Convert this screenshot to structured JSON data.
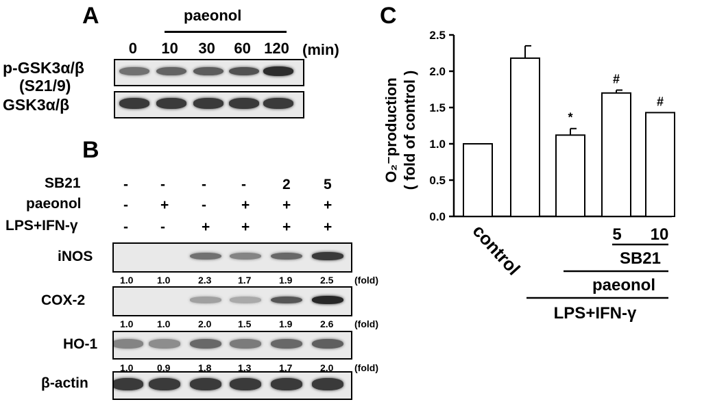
{
  "panelA": {
    "letter": "A",
    "treatment": "paeonol",
    "timepoints": [
      "0",
      "10",
      "30",
      "60",
      "120"
    ],
    "unit": "(min)",
    "rows": [
      {
        "label_line1": "p-GSK3α/β",
        "label_line2": "(S21/9)",
        "intensities": [
          0.55,
          0.62,
          0.66,
          0.72,
          0.92
        ]
      },
      {
        "label_line1": "GSK3α/β",
        "label_line2": "",
        "intensities": [
          0.85,
          0.85,
          0.85,
          0.85,
          0.85
        ]
      }
    ]
  },
  "panelB": {
    "letter": "B",
    "conditions": [
      {
        "label": "SB21",
        "values": [
          "-",
          "-",
          "-",
          "-",
          "2",
          "5"
        ]
      },
      {
        "label": "paeonol",
        "values": [
          "-",
          "+",
          "-",
          "+",
          "+",
          "+"
        ]
      },
      {
        "label": "LPS+IFN-γ",
        "values": [
          "-",
          "-",
          "+",
          "+",
          "+",
          "+"
        ]
      }
    ],
    "fold_unit": "(fold)",
    "blots": [
      {
        "label": "iNOS",
        "folds": [
          "1.0",
          "1.0",
          "2.3",
          "1.7",
          "1.9",
          "2.5"
        ],
        "intensities": [
          0.0,
          0.0,
          0.55,
          0.45,
          0.6,
          0.85
        ]
      },
      {
        "label": "COX-2",
        "folds": [
          "1.0",
          "1.0",
          "2.0",
          "1.5",
          "1.9",
          "2.6"
        ],
        "intensities": [
          0.0,
          0.0,
          0.3,
          0.25,
          0.7,
          0.95
        ]
      },
      {
        "label": "HO-1",
        "folds": [
          "1.0",
          "0.9",
          "1.8",
          "1.3",
          "1.7",
          "2.0"
        ],
        "intensities": [
          0.45,
          0.4,
          0.6,
          0.5,
          0.6,
          0.65
        ]
      },
      {
        "label": "β-actin",
        "folds": [],
        "intensities": [
          0.85,
          0.85,
          0.85,
          0.85,
          0.85,
          0.85
        ]
      }
    ]
  },
  "panelC": {
    "letter": "C",
    "chart_data": {
      "type": "bar",
      "ylabel_line1": "O₂⁻production",
      "ylabel_line2": "( fold of control )",
      "ylim": [
        0,
        2.5
      ],
      "yticks": [
        "0.0",
        "0.5",
        "1.0",
        "1.5",
        "2.0",
        "2.5"
      ],
      "values": [
        1.0,
        2.18,
        1.12,
        1.7,
        1.43
      ],
      "errors": [
        0,
        0.17,
        0.09,
        0.04,
        0
      ],
      "annotations": [
        "",
        "",
        "*",
        "#",
        "#"
      ],
      "x_labels": {
        "control": "control",
        "sb_doses": [
          "5",
          "10"
        ],
        "sb": "SB21",
        "paeonol": "paeonol",
        "lps": "LPS+IFN-γ"
      }
    }
  }
}
